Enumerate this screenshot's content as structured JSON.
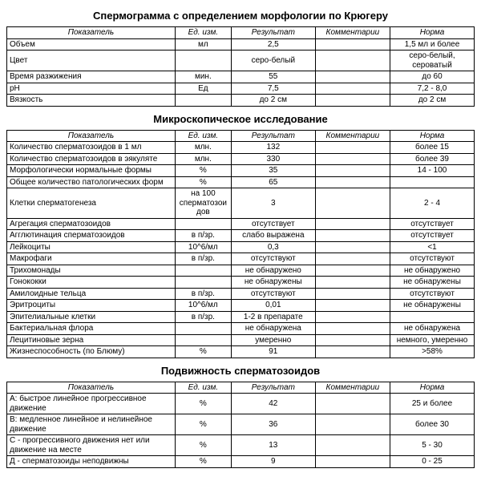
{
  "headers": {
    "indicator": "Показатель",
    "unit": "Ед. изм.",
    "result": "Результат",
    "comment": "Комментарии",
    "norm": "Норма"
  },
  "sections": [
    {
      "title": "Спермограмма с определением морфологии по Крюгеру",
      "rows": [
        {
          "indicator": "Объем",
          "unit": "мл",
          "result": "2,5",
          "comment": "",
          "norm": "1,5 мл и более"
        },
        {
          "indicator": "Цвет",
          "unit": "",
          "result": "серо-белый",
          "comment": "",
          "norm": "серо-белый, сероватый"
        },
        {
          "indicator": "Время разжижения",
          "unit": "мин.",
          "result": "55",
          "comment": "",
          "norm": "до 60"
        },
        {
          "indicator": "pH",
          "unit": "Ед",
          "result": "7,5",
          "comment": "",
          "norm": "7,2 - 8,0"
        },
        {
          "indicator": "Вязкость",
          "unit": "",
          "result": "до 2 см",
          "comment": "",
          "norm": "до 2 см"
        }
      ]
    },
    {
      "title": "Микроскопическое исследование",
      "rows": [
        {
          "indicator": "Количество сперматозоидов в 1 мл",
          "unit": "млн.",
          "result": "132",
          "comment": "",
          "norm": "более 15"
        },
        {
          "indicator": "Количество сперматозоидов в эякуляте",
          "unit": "млн.",
          "result": "330",
          "comment": "",
          "norm": "более 39"
        },
        {
          "indicator": "Морфологически нормальные формы",
          "unit": "%",
          "result": "35",
          "comment": "",
          "norm": "14 - 100"
        },
        {
          "indicator": "Общее количество патологических форм",
          "unit": "%",
          "result": "65",
          "comment": "",
          "norm": ""
        },
        {
          "indicator": "Клетки сперматогенеза",
          "unit": "на 100 сперматозоидов",
          "result": "3",
          "comment": "",
          "norm": "2 - 4"
        },
        {
          "indicator": "Агрегация сперматозоидов",
          "unit": "",
          "result": "отсутствует",
          "comment": "",
          "norm": "отсутствует"
        },
        {
          "indicator": "Агглютинация сперматозоидов",
          "unit": "в п/зр.",
          "result": "слабо выражена",
          "comment": "",
          "norm": "отсутствует"
        },
        {
          "indicator": "Лейкоциты",
          "unit": "10^6/мл",
          "result": "0,3",
          "comment": "",
          "norm": "<1"
        },
        {
          "indicator": "Макрофаги",
          "unit": "в п/зр.",
          "result": "отсутствуют",
          "comment": "",
          "norm": "отсутствуют"
        },
        {
          "indicator": "Трихомонады",
          "unit": "",
          "result": "не обнаружено",
          "comment": "",
          "norm": "не обнаружено"
        },
        {
          "indicator": "Гонококки",
          "unit": "",
          "result": "не обнаружены",
          "comment": "",
          "norm": "не обнаружены"
        },
        {
          "indicator": "Амилоидные тельца",
          "unit": "в п/зр.",
          "result": "отсутствуют",
          "comment": "",
          "norm": "отсутствуют"
        },
        {
          "indicator": "Эритроциты",
          "unit": "10^6/мл",
          "result": "0,01",
          "comment": "",
          "norm": "не обнаружены"
        },
        {
          "indicator": "Эпителиальные клетки",
          "unit": "в п/зр.",
          "result": "1-2 в препарате",
          "comment": "",
          "norm": ""
        },
        {
          "indicator": "Бактериальная флора",
          "unit": "",
          "result": "не обнаружена",
          "comment": "",
          "norm": "не обнаружена"
        },
        {
          "indicator": "Лецитиновые зерна",
          "unit": "",
          "result": "умеренно",
          "comment": "",
          "norm": "немного, умеренно"
        },
        {
          "indicator": "Жизнеспособность (по Блюму)",
          "unit": "%",
          "result": "91",
          "comment": "",
          "norm": ">58%"
        }
      ]
    },
    {
      "title": "Подвижность сперматозоидов",
      "rows": [
        {
          "indicator": "А: быстрое линейное прогрессивное движение",
          "unit": "%",
          "result": "42",
          "comment": "",
          "norm": "25 и более"
        },
        {
          "indicator": "В: медленное линейное и нелинейное движение",
          "unit": "%",
          "result": "36",
          "comment": "",
          "norm": "более 30"
        },
        {
          "indicator": "С - прогрессивного движения нет или движение на месте",
          "unit": "%",
          "result": "13",
          "comment": "",
          "norm": "5 - 30"
        },
        {
          "indicator": "Д - сперматозоиды неподвижны",
          "unit": "%",
          "result": "9",
          "comment": "",
          "norm": "0 - 25"
        }
      ]
    }
  ]
}
